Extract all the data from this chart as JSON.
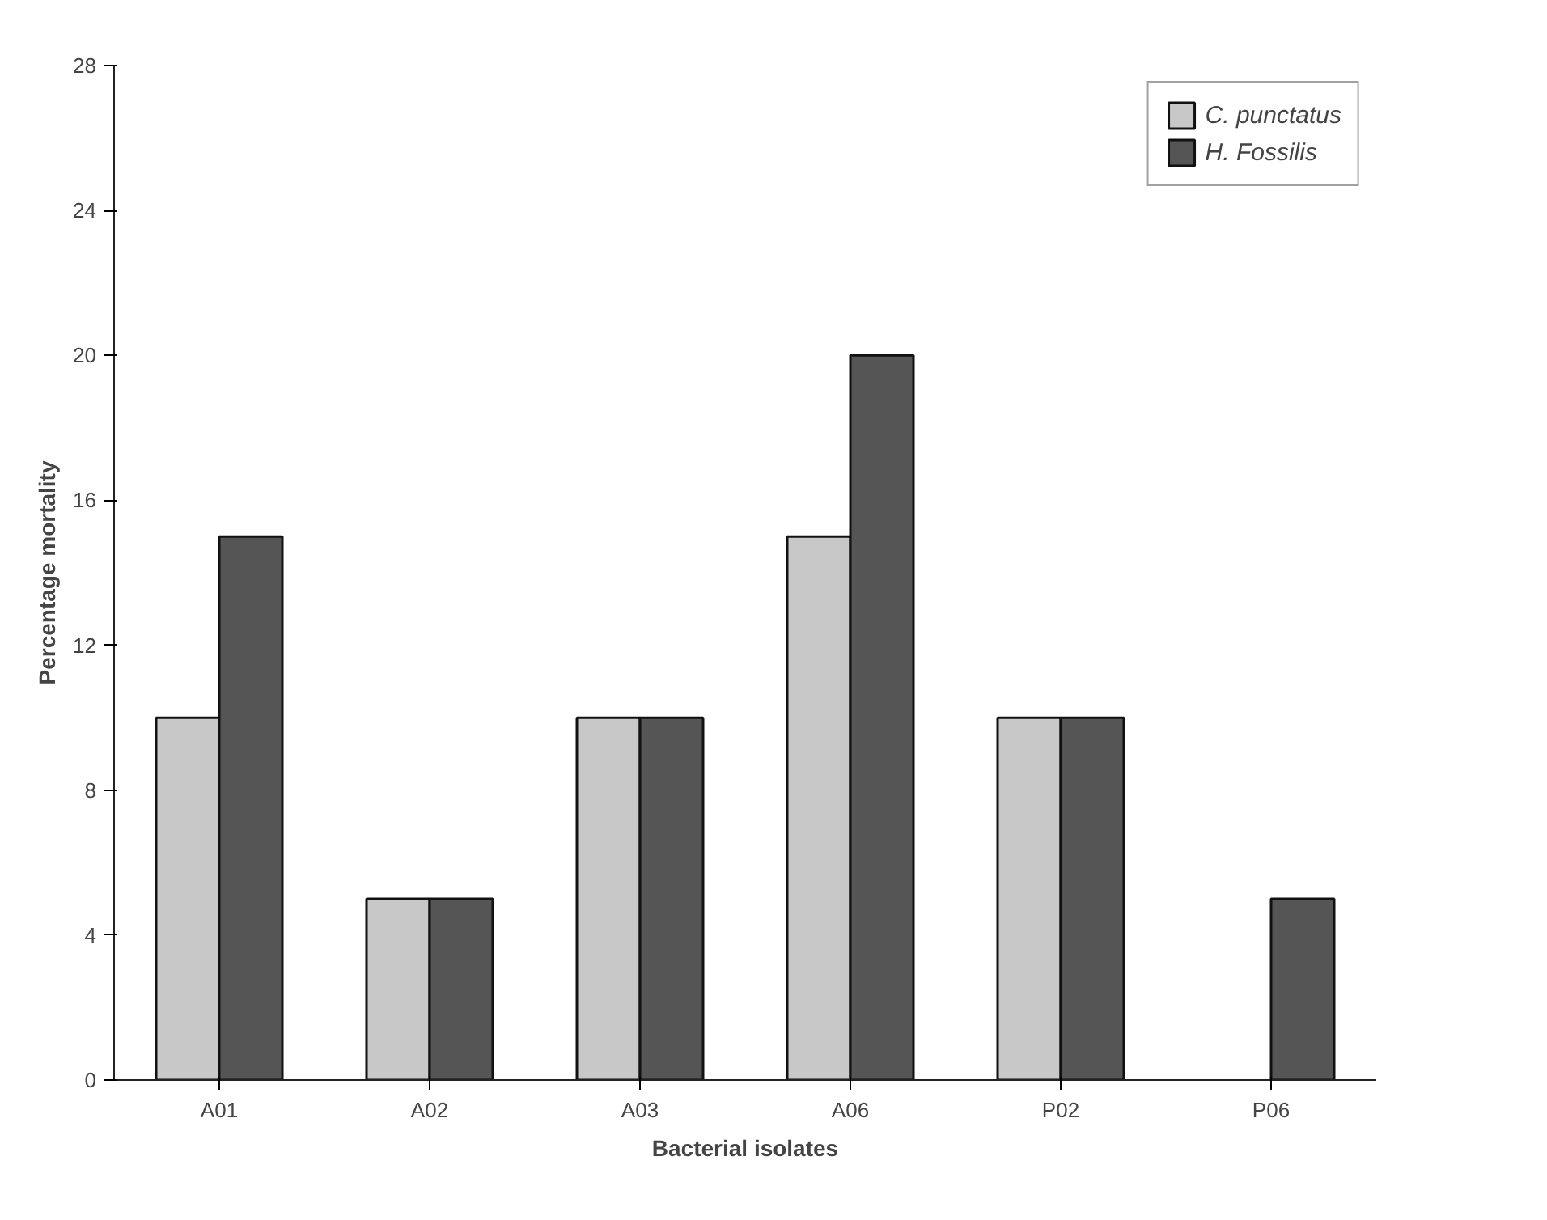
{
  "chart_data": {
    "type": "bar",
    "xlabel": "Bacterial isolates",
    "ylabel": "Percentage mortality",
    "categories": [
      "A01",
      "A02",
      "A03",
      "A06",
      "P02",
      "P06"
    ],
    "series": [
      {
        "name": "C. punctatus",
        "color": "#c8c8c8",
        "values": [
          10,
          5,
          10,
          15,
          10,
          null
        ]
      },
      {
        "name": "H. Fossilis",
        "color": "#555555",
        "values": [
          15,
          5,
          10,
          20,
          10,
          5
        ]
      }
    ],
    "ylim": [
      0,
      28
    ],
    "yticks": [
      0,
      4,
      8,
      12,
      16,
      20,
      24,
      28
    ],
    "grid": false,
    "legend": "top right"
  }
}
